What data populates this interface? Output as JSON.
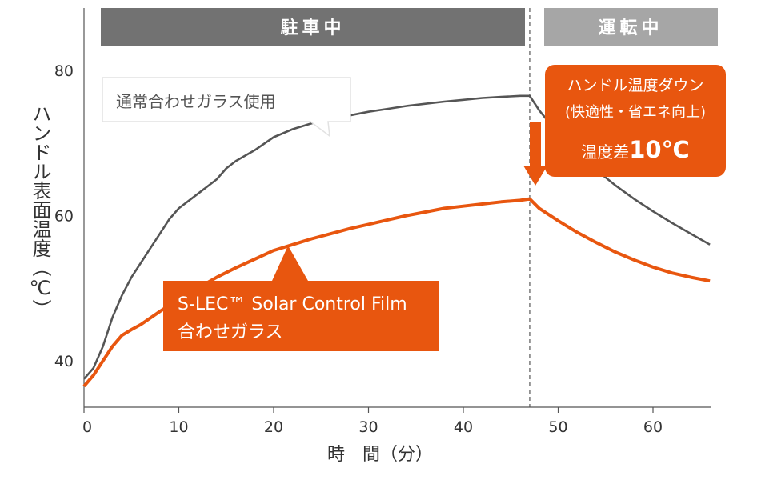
{
  "chart_data": {
    "type": "line",
    "x_title": "時　間（分）",
    "y_title": "ハンドル表面温度（℃）",
    "xlim": [
      0,
      66
    ],
    "ylim": [
      34,
      90
    ],
    "x_ticks": [
      0,
      10,
      20,
      30,
      40,
      50,
      60
    ],
    "y_ticks": [
      40,
      60,
      80
    ],
    "grid": false,
    "phases": [
      {
        "label": "駐車中",
        "from": 0,
        "to": 47
      },
      {
        "label": "運転中",
        "from": 47,
        "to": 66
      }
    ],
    "divider_x": 47,
    "series": [
      {
        "name": "通常合わせガラス使用",
        "color": "#555555",
        "x": [
          0,
          1,
          2,
          3,
          4,
          5,
          6,
          7,
          8,
          9,
          10,
          12,
          14,
          15,
          16,
          18,
          20,
          22,
          24,
          26,
          28,
          30,
          32,
          34,
          36,
          38,
          40,
          42,
          44,
          46,
          47,
          48,
          50,
          52,
          54,
          56,
          58,
          60,
          62,
          64,
          66
        ],
        "y": [
          37.5,
          39,
          42,
          46,
          49,
          51.5,
          53.5,
          55.5,
          57.5,
          59.5,
          61,
          63,
          65,
          66.5,
          67.5,
          69,
          70.8,
          71.9,
          72.7,
          73.3,
          73.8,
          74.3,
          74.7,
          75.1,
          75.4,
          75.7,
          75.95,
          76.2,
          76.35,
          76.5,
          76.5,
          74.5,
          71.3,
          68.7,
          66.3,
          64.2,
          62.3,
          60.6,
          59.0,
          57.5,
          56.0
        ]
      },
      {
        "name": "S-LEC™ Solar Control Film 合わせガラス",
        "color": "#E8560F",
        "x": [
          0,
          1,
          2,
          3,
          4,
          5,
          6,
          8,
          10,
          12,
          14,
          16,
          18,
          20,
          22,
          24,
          26,
          28,
          30,
          32,
          34,
          36,
          38,
          40,
          42,
          44,
          46,
          47,
          48,
          50,
          52,
          54,
          56,
          58,
          60,
          62,
          64,
          66
        ],
        "y": [
          36.5,
          38,
          40,
          42,
          43.5,
          44.3,
          45,
          46.8,
          48.5,
          50,
          51.5,
          52.8,
          54,
          55.2,
          56,
          56.8,
          57.5,
          58.2,
          58.8,
          59.4,
          60,
          60.5,
          61,
          61.3,
          61.6,
          61.9,
          62.1,
          62.3,
          61.0,
          59.3,
          57.7,
          56.3,
          55.0,
          53.9,
          52.9,
          52.1,
          51.5,
          51.0
        ]
      }
    ],
    "annotations": {
      "gray_callout": "通常合わせガラス使用",
      "orange_callout_line1": "S-LEC™ Solar Control Film",
      "orange_callout_line2": "合わせガラス",
      "diff_line1": "ハンドル温度ダウン",
      "diff_line2": "(快適性・省エネ向上)",
      "diff_line3_prefix": "温度差",
      "diff_line3_value": "10℃"
    },
    "colors": {
      "parked_band": "#727272",
      "driving_band": "#A6A6A6",
      "accent": "#E8560F",
      "gray_line": "#555555"
    }
  }
}
